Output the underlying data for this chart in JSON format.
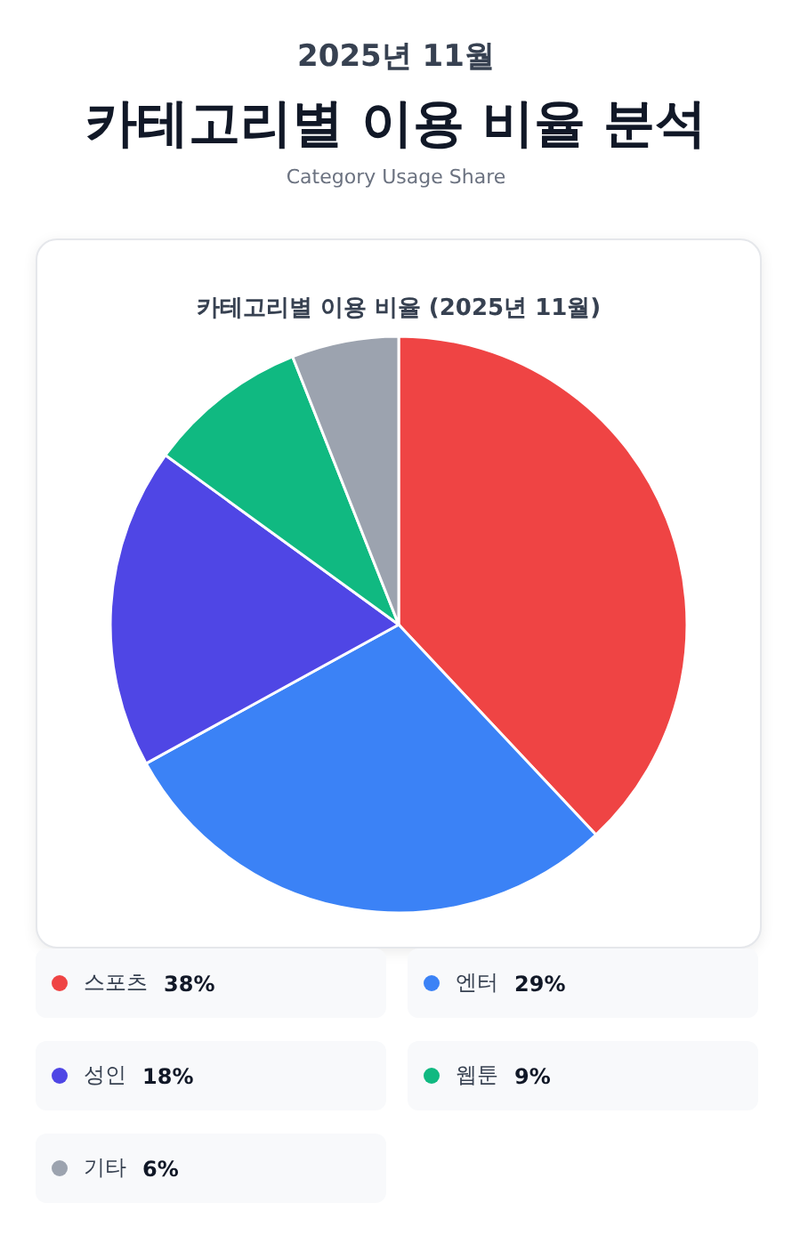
{
  "chart_data": {
    "type": "pie",
    "title": "카테고리별 이용 비율 분석",
    "subtitle": "Category Usage Share",
    "annotations": [
      "2025년 11월",
      "카테고리별 이용 비율 (2025년 11월)"
    ],
    "categories": [
      "스포츠",
      "엔터",
      "성인",
      "웹툰",
      "기타"
    ],
    "values": [
      38,
      29,
      18,
      9,
      6
    ],
    "colors": [
      "#ef4444",
      "#3b82f6",
      "#4f46e5",
      "#10b981",
      "#9ca3af"
    ],
    "value_labels": [
      "38%",
      "29%",
      "18%",
      "9%",
      "6%"
    ],
    "legend": "bottom"
  }
}
